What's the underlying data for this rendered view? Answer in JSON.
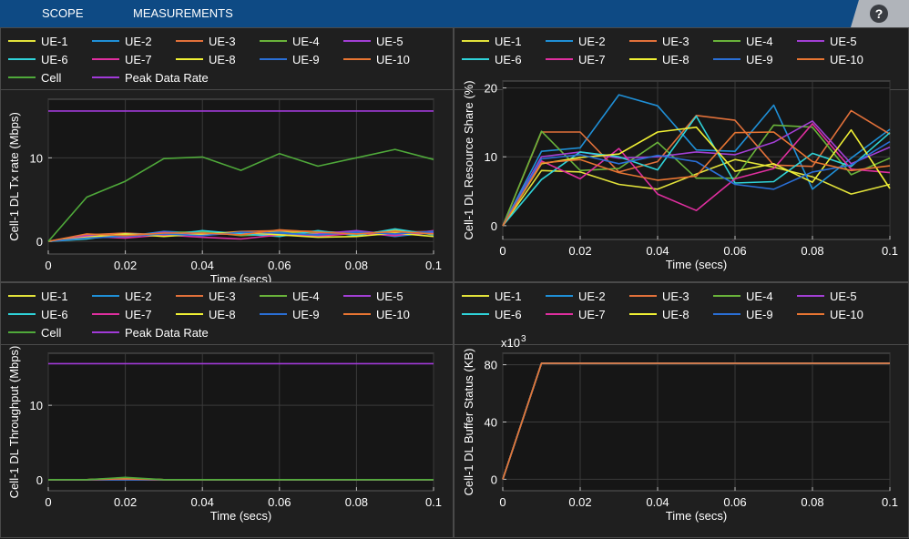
{
  "toolbar": {
    "tabs": [
      "SCOPE",
      "MEASUREMENTS"
    ],
    "help_label": "?"
  },
  "colors": {
    "ue1": "#e2e23a",
    "ue2": "#1f8fd6",
    "ue3": "#e2713a",
    "ue4": "#69b33a",
    "ue5": "#a23fd4",
    "ue6": "#2fd3d9",
    "ue7": "#df2f9f",
    "ue8": "#f0f034",
    "ue9": "#2a6fd6",
    "ue10": "#e87532",
    "cell": "#4fa93a",
    "peak": "#a13ad8"
  },
  "legend_top_left": [
    {
      "label": "UE-1",
      "color": "#e2e23a"
    },
    {
      "label": "UE-2",
      "color": "#1f8fd6"
    },
    {
      "label": "UE-3",
      "color": "#e2713a"
    },
    {
      "label": "UE-4",
      "color": "#69b33a"
    },
    {
      "label": "UE-5",
      "color": "#a23fd4"
    },
    {
      "label": "UE-6",
      "color": "#2fd3d9"
    },
    {
      "label": "UE-7",
      "color": "#df2f9f"
    },
    {
      "label": "UE-8",
      "color": "#f0f034"
    },
    {
      "label": "UE-9",
      "color": "#2a6fd6"
    },
    {
      "label": "UE-10",
      "color": "#e87532"
    },
    {
      "label": "Cell",
      "color": "#4fa93a"
    },
    {
      "label": "Peak Data Rate",
      "color": "#a13ad8"
    }
  ],
  "legend_top_right": [
    {
      "label": "UE-1",
      "color": "#e2e23a"
    },
    {
      "label": "UE-2",
      "color": "#1f8fd6"
    },
    {
      "label": "UE-3",
      "color": "#e2713a"
    },
    {
      "label": "UE-4",
      "color": "#69b33a"
    },
    {
      "label": "UE-5",
      "color": "#a23fd4"
    },
    {
      "label": "UE-6",
      "color": "#2fd3d9"
    },
    {
      "label": "UE-7",
      "color": "#df2f9f"
    },
    {
      "label": "UE-8",
      "color": "#f0f034"
    },
    {
      "label": "UE-9",
      "color": "#2a6fd6"
    },
    {
      "label": "UE-10",
      "color": "#e87532"
    }
  ],
  "legend_bottom_left": [
    {
      "label": "UE-1",
      "color": "#e2e23a"
    },
    {
      "label": "UE-2",
      "color": "#1f8fd6"
    },
    {
      "label": "UE-3",
      "color": "#e2713a"
    },
    {
      "label": "UE-4",
      "color": "#69b33a"
    },
    {
      "label": "UE-5",
      "color": "#a23fd4"
    },
    {
      "label": "UE-6",
      "color": "#2fd3d9"
    },
    {
      "label": "UE-7",
      "color": "#df2f9f"
    },
    {
      "label": "UE-8",
      "color": "#f0f034"
    },
    {
      "label": "UE-9",
      "color": "#2a6fd6"
    },
    {
      "label": "UE-10",
      "color": "#e87532"
    },
    {
      "label": "Cell",
      "color": "#4fa93a"
    },
    {
      "label": "Peak Data Rate",
      "color": "#a13ad8"
    }
  ],
  "legend_bottom_right": [
    {
      "label": "UE-1",
      "color": "#e2e23a"
    },
    {
      "label": "UE-2",
      "color": "#1f8fd6"
    },
    {
      "label": "UE-3",
      "color": "#e2713a"
    },
    {
      "label": "UE-4",
      "color": "#69b33a"
    },
    {
      "label": "UE-5",
      "color": "#a23fd4"
    },
    {
      "label": "UE-6",
      "color": "#2fd3d9"
    },
    {
      "label": "UE-7",
      "color": "#df2f9f"
    },
    {
      "label": "UE-8",
      "color": "#f0f034"
    },
    {
      "label": "UE-9",
      "color": "#2a6fd6"
    },
    {
      "label": "UE-10",
      "color": "#e87532"
    }
  ],
  "chart_data": [
    {
      "type": "line",
      "title": "",
      "xlabel": "Time (secs)",
      "ylabel": "Cell-1 DL Tx rate (Mbps)",
      "xlim": [
        0,
        0.1
      ],
      "ylim": [
        -1.5,
        17
      ],
      "xticks": [
        0,
        0.02,
        0.04,
        0.06,
        0.08,
        0.1
      ],
      "xtick_labels": [
        "0",
        "0.02",
        "0.04",
        "0.06",
        "0.08",
        "0.1"
      ],
      "yticks": [
        0,
        10
      ],
      "ytick_labels": [
        "0",
        "10"
      ],
      "grid": true,
      "x": [
        0,
        0.01,
        0.02,
        0.03,
        0.04,
        0.05,
        0.06,
        0.07,
        0.08,
        0.09,
        0.1
      ],
      "series": [
        {
          "name": "UE-1",
          "color": "#e2e23a",
          "values": [
            0,
            0.6,
            0.8,
            0.9,
            1.1,
            0.9,
            1.2,
            1.0,
            0.9,
            1.3,
            1.0
          ]
        },
        {
          "name": "UE-2",
          "color": "#1f8fd6",
          "values": [
            0,
            0.4,
            0.6,
            1.2,
            1.0,
            0.8,
            1.1,
            0.7,
            1.2,
            0.6,
            1.1
          ]
        },
        {
          "name": "UE-3",
          "color": "#e2713a",
          "values": [
            0,
            0.8,
            1.0,
            0.8,
            0.9,
            1.2,
            1.3,
            1.2,
            1.0,
            1.1,
            1.2
          ]
        },
        {
          "name": "UE-4",
          "color": "#69b33a",
          "values": [
            0,
            0.5,
            0.7,
            1.0,
            1.2,
            0.7,
            0.9,
            1.1,
            0.8,
            1.2,
            0.9
          ]
        },
        {
          "name": "UE-5",
          "color": "#a23fd4",
          "values": [
            0,
            0.7,
            0.5,
            1.1,
            0.8,
            1.0,
            0.7,
            0.9,
            1.3,
            0.8,
            1.0
          ]
        },
        {
          "name": "UE-6",
          "color": "#2fd3d9",
          "values": [
            0,
            0.3,
            0.9,
            0.7,
            1.3,
            0.9,
            0.6,
            1.3,
            0.7,
            1.5,
            0.8
          ]
        },
        {
          "name": "UE-7",
          "color": "#df2f9f",
          "values": [
            0,
            0.6,
            0.4,
            0.8,
            0.5,
            0.3,
            0.8,
            0.6,
            1.0,
            0.7,
            1.3
          ]
        },
        {
          "name": "UE-8",
          "color": "#f0f034",
          "values": [
            0,
            0.5,
            0.9,
            0.6,
            0.9,
            1.1,
            0.8,
            0.5,
            0.6,
            1.0,
            0.6
          ]
        },
        {
          "name": "UE-9",
          "color": "#2a6fd6",
          "values": [
            0,
            0.4,
            0.6,
            0.9,
            0.7,
            1.1,
            1.0,
            0.8,
            1.1,
            0.9,
            1.2
          ]
        },
        {
          "name": "UE-10",
          "color": "#e87532",
          "values": [
            0,
            0.9,
            0.7,
            1.0,
            1.0,
            0.8,
            1.4,
            1.1,
            0.9,
            1.2,
            0.9
          ]
        },
        {
          "name": "Cell",
          "color": "#4fa93a",
          "values": [
            0,
            5.3,
            7.2,
            9.9,
            10.1,
            8.5,
            10.5,
            9.0,
            10.0,
            11.0,
            9.8
          ]
        },
        {
          "name": "Peak Data Rate",
          "color": "#a13ad8",
          "values": [
            15.6,
            15.6,
            15.6,
            15.6,
            15.6,
            15.6,
            15.6,
            15.6,
            15.6,
            15.6,
            15.6
          ]
        }
      ]
    },
    {
      "type": "line",
      "title": "",
      "xlabel": "Time (secs)",
      "ylabel": "Cell-1 DL Resource Share (%)",
      "xlim": [
        0,
        0.1
      ],
      "ylim": [
        -2,
        21
      ],
      "xticks": [
        0,
        0.02,
        0.04,
        0.06,
        0.08,
        0.1
      ],
      "xtick_labels": [
        "0",
        "0.02",
        "0.04",
        "0.06",
        "0.08",
        "0.1"
      ],
      "yticks": [
        0,
        10,
        20
      ],
      "ytick_labels": [
        "0",
        "10",
        "20"
      ],
      "grid": true,
      "x": [
        0,
        0.01,
        0.02,
        0.03,
        0.04,
        0.05,
        0.06,
        0.07,
        0.08,
        0.09,
        0.1
      ],
      "series": [
        {
          "name": "UE-1",
          "color": "#e2e23a",
          "values": [
            0,
            8.0,
            7.8,
            6.0,
            5.3,
            7.5,
            9.6,
            8.5,
            7.1,
            4.6,
            6.0
          ]
        },
        {
          "name": "UE-2",
          "color": "#1f8fd6",
          "values": [
            0,
            10.8,
            11.3,
            19.0,
            17.4,
            11.0,
            10.8,
            17.5,
            5.3,
            9.8,
            14.0
          ]
        },
        {
          "name": "UE-3",
          "color": "#e2713a",
          "values": [
            0,
            13.6,
            13.6,
            7.8,
            9.3,
            16.0,
            15.3,
            8.8,
            8.6,
            16.7,
            13.3
          ]
        },
        {
          "name": "UE-4",
          "color": "#69b33a",
          "values": [
            0,
            13.7,
            8.0,
            8.3,
            12.1,
            6.9,
            6.9,
            14.6,
            14.3,
            7.4,
            9.8
          ]
        },
        {
          "name": "UE-5",
          "color": "#a23fd4",
          "values": [
            0,
            10.0,
            10.7,
            9.8,
            10.0,
            10.7,
            10.3,
            12.1,
            15.2,
            9.0,
            11.4
          ]
        },
        {
          "name": "UE-6",
          "color": "#2fd3d9",
          "values": [
            0,
            6.7,
            10.7,
            10.0,
            8.1,
            15.9,
            6.2,
            6.4,
            10.5,
            8.6,
            13.5
          ]
        },
        {
          "name": "UE-7",
          "color": "#df2f9f",
          "values": [
            0,
            9.4,
            6.8,
            11.2,
            4.6,
            2.2,
            6.8,
            8.3,
            14.8,
            8.2,
            7.7
          ]
        },
        {
          "name": "UE-8",
          "color": "#f0f034",
          "values": [
            0,
            9.0,
            9.9,
            10.4,
            13.6,
            14.3,
            7.9,
            9.0,
            6.3,
            13.9,
            5.4
          ]
        },
        {
          "name": "UE-9",
          "color": "#2a6fd6",
          "values": [
            0,
            9.7,
            10.3,
            9.0,
            10.2,
            9.3,
            6.0,
            5.3,
            7.8,
            8.8,
            12.2
          ]
        },
        {
          "name": "UE-10",
          "color": "#e87532",
          "values": [
            0,
            9.1,
            9.6,
            7.7,
            6.6,
            7.2,
            13.5,
            13.6,
            9.3,
            8.0,
            8.7
          ]
        }
      ]
    },
    {
      "type": "line",
      "title": "",
      "xlabel": "Time (secs)",
      "ylabel": "Cell-1 DL Throughput (Mbps)",
      "xlim": [
        0,
        0.1
      ],
      "ylim": [
        -1.5,
        17
      ],
      "xticks": [
        0,
        0.02,
        0.04,
        0.06,
        0.08,
        0.1
      ],
      "xtick_labels": [
        "0",
        "0.02",
        "0.04",
        "0.06",
        "0.08",
        "0.1"
      ],
      "yticks": [
        0,
        10
      ],
      "ytick_labels": [
        "0",
        "10"
      ],
      "grid": true,
      "x": [
        0,
        0.01,
        0.02,
        0.03,
        0.04,
        0.05,
        0.06,
        0.07,
        0.08,
        0.09,
        0.1
      ],
      "series": [
        {
          "name": "UE-1",
          "color": "#e2e23a",
          "values": [
            0,
            0,
            0.1,
            0,
            0,
            0,
            0,
            0,
            0,
            0,
            0
          ]
        },
        {
          "name": "UE-2",
          "color": "#1f8fd6",
          "values": [
            0,
            0,
            0,
            0,
            0,
            0,
            0,
            0,
            0,
            0,
            0
          ]
        },
        {
          "name": "UE-3",
          "color": "#e2713a",
          "values": [
            0,
            0,
            0.2,
            0,
            0,
            0,
            0,
            0,
            0,
            0,
            0
          ]
        },
        {
          "name": "UE-4",
          "color": "#69b33a",
          "values": [
            0,
            0,
            0,
            0,
            0,
            0,
            0,
            0,
            0,
            0,
            0
          ]
        },
        {
          "name": "UE-5",
          "color": "#a23fd4",
          "values": [
            0,
            0,
            0,
            0,
            0,
            0,
            0,
            0,
            0,
            0,
            0
          ]
        },
        {
          "name": "UE-6",
          "color": "#2fd3d9",
          "values": [
            0,
            0,
            0,
            0,
            0,
            0,
            0,
            0,
            0,
            0,
            0
          ]
        },
        {
          "name": "UE-7",
          "color": "#df2f9f",
          "values": [
            0,
            0,
            0,
            0,
            0,
            0,
            0,
            0,
            0,
            0,
            0
          ]
        },
        {
          "name": "UE-8",
          "color": "#f0f034",
          "values": [
            0,
            0,
            0.1,
            0,
            0,
            0,
            0,
            0,
            0,
            0,
            0
          ]
        },
        {
          "name": "UE-9",
          "color": "#2a6fd6",
          "values": [
            0,
            0,
            0,
            0,
            0,
            0,
            0,
            0,
            0,
            0,
            0
          ]
        },
        {
          "name": "UE-10",
          "color": "#e87532",
          "values": [
            0,
            0,
            0.1,
            0,
            0,
            0,
            0,
            0,
            0,
            0,
            0
          ]
        },
        {
          "name": "Cell",
          "color": "#4fa93a",
          "values": [
            0,
            0,
            0.3,
            0,
            0,
            0,
            0,
            0,
            0,
            0,
            0
          ]
        },
        {
          "name": "Peak Data Rate",
          "color": "#a13ad8",
          "values": [
            15.6,
            15.6,
            15.6,
            15.6,
            15.6,
            15.6,
            15.6,
            15.6,
            15.6,
            15.6,
            15.6
          ]
        }
      ]
    },
    {
      "type": "line",
      "title": "",
      "xlabel": "Time (secs)",
      "ylabel": "Cell-1 DL Buffer Status (KB)",
      "exponent_label": "x10",
      "exponent_power": "3",
      "xlim": [
        0,
        0.1
      ],
      "ylim": [
        -8,
        88
      ],
      "xticks": [
        0,
        0.02,
        0.04,
        0.06,
        0.08,
        0.1
      ],
      "xtick_labels": [
        "0",
        "0.02",
        "0.04",
        "0.06",
        "0.08",
        "0.1"
      ],
      "yticks": [
        0,
        40,
        80
      ],
      "ytick_labels": [
        "0",
        "40",
        "80"
      ],
      "grid": true,
      "x": [
        0,
        0.01,
        0.02,
        0.03,
        0.04,
        0.05,
        0.06,
        0.07,
        0.08,
        0.09,
        0.1
      ],
      "series": [
        {
          "name": "UE-1",
          "color": "#e2e23a",
          "values": [
            0,
            81,
            81,
            81,
            81,
            81,
            81,
            81,
            81,
            81,
            81
          ]
        },
        {
          "name": "UE-2",
          "color": "#1f8fd6",
          "values": [
            0,
            81,
            81,
            81,
            81,
            81,
            81,
            81,
            81,
            81,
            81
          ]
        },
        {
          "name": "UE-3",
          "color": "#e2713a",
          "values": [
            0,
            81,
            81,
            81,
            81,
            81,
            81,
            81,
            81,
            81,
            81
          ]
        },
        {
          "name": "UE-4",
          "color": "#69b33a",
          "values": [
            0,
            81,
            81,
            81,
            81,
            81,
            81,
            81,
            81,
            81,
            81
          ]
        },
        {
          "name": "UE-5",
          "color": "#a23fd4",
          "values": [
            0,
            81,
            81,
            81,
            81,
            81,
            81,
            81,
            81,
            81,
            81
          ]
        },
        {
          "name": "UE-6",
          "color": "#2fd3d9",
          "values": [
            0,
            81,
            81,
            81,
            81,
            81,
            81,
            81,
            81,
            81,
            81
          ]
        },
        {
          "name": "UE-7",
          "color": "#df2f9f",
          "values": [
            0,
            81,
            81,
            81,
            81,
            81,
            81,
            81,
            81,
            81,
            81
          ]
        },
        {
          "name": "UE-8",
          "color": "#f0f034",
          "values": [
            0,
            81,
            81,
            81,
            81,
            81,
            81,
            81,
            81,
            81,
            81
          ]
        },
        {
          "name": "UE-9",
          "color": "#2a6fd6",
          "values": [
            0,
            81,
            81,
            81,
            81,
            81,
            81,
            81,
            81,
            81,
            81
          ]
        },
        {
          "name": "UE-10",
          "color": "#e87532",
          "values": [
            0,
            81,
            81,
            81,
            81,
            81,
            81,
            81,
            81,
            81,
            81
          ]
        }
      ]
    }
  ]
}
